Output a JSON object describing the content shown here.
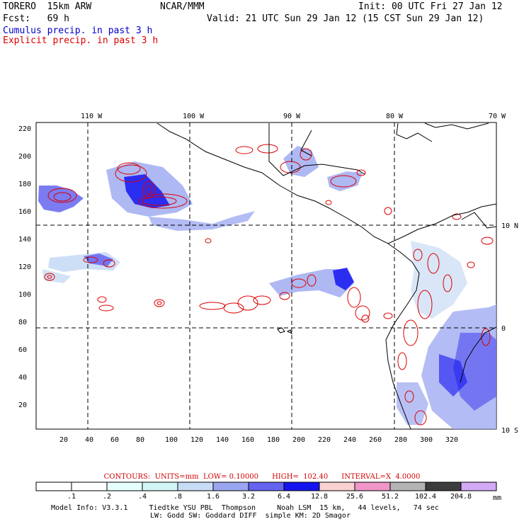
{
  "header": {
    "model": "TORERO  15km ARW",
    "center": "NCAR/MMM",
    "init": "Init: 00 UTC Fri 27 Jan 12",
    "fcst": "Fcst:   69 h",
    "valid": "Valid: 21 UTC Sun 29 Jan 12 (15 CST Sun 29 Jan 12)",
    "field1": "Cumulus precip. in past 3 h",
    "field2": "Explicit precip. in past 3 h",
    "field1_color": "#0000cc",
    "field2_color": "#dd0000"
  },
  "map": {
    "lon_labels": [
      "110 W",
      "100 W",
      "90 W",
      "80 W",
      "70 W"
    ],
    "lat_labels": [
      "10 N",
      "0",
      "10 S"
    ],
    "y_ticks": [
      "220",
      "200",
      "180",
      "160",
      "140",
      "120",
      "100",
      "80",
      "60",
      "40",
      "20"
    ],
    "x_ticks": [
      "20",
      "40",
      "60",
      "80",
      "100",
      "120",
      "140",
      "160",
      "180",
      "200",
      "220",
      "240",
      "260",
      "280",
      "300",
      "320"
    ]
  },
  "contour_info": "CONTOURS:  UNITS=mm  LOW= 0.10000      HIGH=  102.40      INTERVAL=X  4.0000",
  "colorbar": {
    "labels": [
      ".1",
      ".2",
      ".4",
      ".8",
      "1.6",
      "3.2",
      "6.4",
      "12.8",
      "25.6",
      "51.2",
      "102.4",
      "204.8"
    ],
    "unit": "mm",
    "colors": [
      "#ffffff",
      "#ffffff",
      "#e6ffff",
      "#d2f5f5",
      "#c8dcf5",
      "#9aa6f0",
      "#6464f0",
      "#1414f0",
      "#fad2d2",
      "#f096c8",
      "#b4b4b4",
      "#3c3c3c",
      "#d2aaf5"
    ]
  },
  "model_info": {
    "line1": "Model Info: V3.3.1     Tiedtke YSU PBL  Thompson     Noah LSM  15 km,   44 levels,   74 sec",
    "line2": "LW: Godd SW: Goddard DIFF  simple KM: 2D Smagor"
  }
}
